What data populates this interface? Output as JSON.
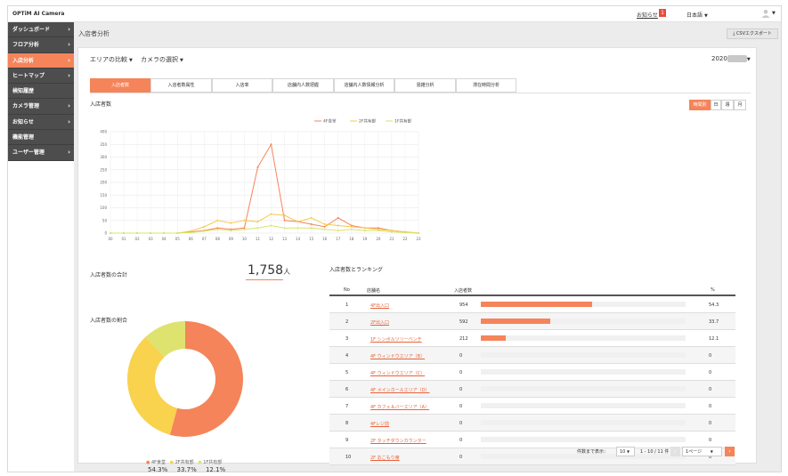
{
  "app": {
    "title": "OPTiM AI Camera"
  },
  "topbar": {
    "notice_label": "お知らせ",
    "notice_count": "1",
    "language": "日本語"
  },
  "sidebar": {
    "items": [
      {
        "label": "ダッシュボード",
        "active": false
      },
      {
        "label": "フロア分析",
        "active": false
      },
      {
        "label": "入店分析",
        "active": true
      },
      {
        "label": "ヒートマップ",
        "active": false
      },
      {
        "label": "検知履歴",
        "active": false
      },
      {
        "label": "カメラ管理",
        "active": false
      },
      {
        "label": "お知らせ",
        "active": false
      },
      {
        "label": "機能管理",
        "active": false
      },
      {
        "label": "ユーザー管理",
        "active": false
      }
    ]
  },
  "header": {
    "page_title": "入店者分析",
    "csv_label": "CSVエクスポート"
  },
  "filters": {
    "area_label": "エリアの比較",
    "camera_label": "カメラの選択",
    "year_label": "2020"
  },
  "tabs": [
    "入店者数",
    "入店者数属性",
    "入店率",
    "店舗内人数把握",
    "店舗内人数情報分析",
    "混雑分析",
    "滞在時間分析"
  ],
  "chart_section": {
    "title": "入店者数",
    "period_buttons": [
      "時間別",
      "日",
      "週",
      "月"
    ]
  },
  "chart_data": [
    {
      "type": "line",
      "title": "入店者数",
      "x": [
        "00",
        "01",
        "02",
        "03",
        "04",
        "05",
        "06",
        "07",
        "08",
        "09",
        "10",
        "11",
        "12",
        "13",
        "14",
        "15",
        "16",
        "17",
        "18",
        "19",
        "20",
        "21",
        "22",
        "23"
      ],
      "ylim": [
        0,
        400
      ],
      "yticks": [
        0,
        50,
        100,
        150,
        200,
        250,
        300,
        350,
        400
      ],
      "grid": true,
      "legend": "top-center",
      "series": [
        {
          "name": "4F食堂",
          "color": "#f5845a",
          "values": [
            0,
            0,
            0,
            0,
            0,
            0,
            5,
            10,
            20,
            15,
            20,
            260,
            350,
            50,
            45,
            35,
            25,
            60,
            30,
            20,
            20,
            10,
            5,
            0
          ]
        },
        {
          "name": "2F共有部",
          "color": "#f7c948",
          "values": [
            0,
            0,
            0,
            0,
            0,
            0,
            8,
            25,
            50,
            40,
            50,
            45,
            75,
            70,
            45,
            60,
            35,
            30,
            25,
            20,
            15,
            10,
            5,
            0
          ]
        },
        {
          "name": "1F共有部",
          "color": "#d9e36a",
          "values": [
            0,
            0,
            0,
            0,
            0,
            0,
            2,
            8,
            15,
            10,
            15,
            20,
            30,
            20,
            20,
            20,
            15,
            10,
            15,
            10,
            10,
            5,
            2,
            0
          ]
        }
      ]
    },
    {
      "type": "pie",
      "title": "入店者数の割合",
      "labels": [
        "4F食堂",
        "2F共有部",
        "1F共有部"
      ],
      "values": [
        54.3,
        33.7,
        12.1
      ],
      "colors": [
        "#f5845a",
        "#f9d24e",
        "#dde36e"
      ]
    }
  ],
  "total": {
    "title": "入店者数の合計",
    "value": "1,758",
    "unit": "人"
  },
  "ratio": {
    "title": "入店者数の割合",
    "legend": [
      {
        "label": "4F食堂",
        "pct": "54.3%"
      },
      {
        "label": "2F共有部",
        "pct": "33.7%"
      },
      {
        "label": "1F共有部",
        "pct": "12.1%"
      }
    ]
  },
  "ranking": {
    "title": "入店者数とランキング",
    "headers": {
      "no": "No",
      "store": "店舗名",
      "count": "入店者数",
      "pct": "%"
    },
    "rows": [
      {
        "no": "1",
        "store": "4F出入口",
        "count": "954",
        "pct": "54.3",
        "fill": 0.543
      },
      {
        "no": "2",
        "store": "2F出入口",
        "count": "592",
        "pct": "33.7",
        "fill": 0.337
      },
      {
        "no": "3",
        "store": "1F シンボルツリーベンチ",
        "count": "212",
        "pct": "12.1",
        "fill": 0.121
      },
      {
        "no": "4",
        "store": "4F ウィンドウエリア（B）",
        "count": "0",
        "pct": "0",
        "fill": 0
      },
      {
        "no": "5",
        "store": "4F ウィンドウエリア（C）",
        "count": "0",
        "pct": "0",
        "fill": 0
      },
      {
        "no": "6",
        "store": "4F メインホールエリア（D）",
        "count": "0",
        "pct": "0",
        "fill": 0
      },
      {
        "no": "7",
        "store": "4F カフェ＆バーエリア（A）",
        "count": "0",
        "pct": "0",
        "fill": 0
      },
      {
        "no": "8",
        "store": "4Fレジ前",
        "count": "0",
        "pct": "0",
        "fill": 0
      },
      {
        "no": "9",
        "store": "2F タッチダウンカウンター",
        "count": "0",
        "pct": "0",
        "fill": 0
      },
      {
        "no": "10",
        "store": "2F おこもり席",
        "count": "0",
        "pct": "0",
        "fill": 0
      }
    ]
  },
  "pagination": {
    "per_page_label": "件数まで表示：",
    "per_page": "10",
    "range": "1 - 10 / 11 件",
    "page_select": "1ページ"
  }
}
